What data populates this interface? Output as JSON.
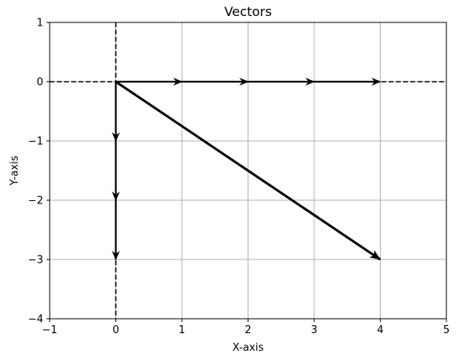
{
  "chart_data": {
    "type": "vector",
    "title": "Vectors",
    "xlabel": "X-axis",
    "ylabel": "Y-axis",
    "xlim": [
      -1,
      5
    ],
    "ylim": [
      -4,
      1
    ],
    "xticks": [
      -1,
      0,
      1,
      2,
      3,
      4,
      5
    ],
    "yticks": [
      -4,
      -3,
      -2,
      -1,
      0,
      1
    ],
    "xtick_labels": [
      "−1",
      "0",
      "1",
      "2",
      "3",
      "4",
      "5"
    ],
    "ytick_labels": [
      "−4",
      "−3",
      "−2",
      "−1",
      "0",
      "1"
    ],
    "grid": true,
    "reference_lines": [
      {
        "orientation": "horizontal",
        "value": 0,
        "style": "dashed"
      },
      {
        "orientation": "vertical",
        "value": 0,
        "style": "dashed"
      }
    ],
    "vectors": [
      {
        "x0": 0,
        "y0": 0,
        "x1": 1,
        "y1": 0,
        "weight": "thin"
      },
      {
        "x0": 1,
        "y0": 0,
        "x1": 2,
        "y1": 0,
        "weight": "thin"
      },
      {
        "x0": 2,
        "y0": 0,
        "x1": 3,
        "y1": 0,
        "weight": "thin"
      },
      {
        "x0": 3,
        "y0": 0,
        "x1": 4,
        "y1": 0,
        "weight": "thin"
      },
      {
        "x0": 0,
        "y0": 0,
        "x1": 0,
        "y1": -1,
        "weight": "thin"
      },
      {
        "x0": 0,
        "y0": -1,
        "x1": 0,
        "y1": -2,
        "weight": "thin"
      },
      {
        "x0": 0,
        "y0": -2,
        "x1": 0,
        "y1": -3,
        "weight": "thin"
      },
      {
        "x0": 0,
        "y0": 0,
        "x1": 4,
        "y1": -3,
        "weight": "thick"
      }
    ],
    "colors": {
      "vector": "#000000",
      "grid": "#b0b0b0",
      "axes": "#000000"
    }
  }
}
